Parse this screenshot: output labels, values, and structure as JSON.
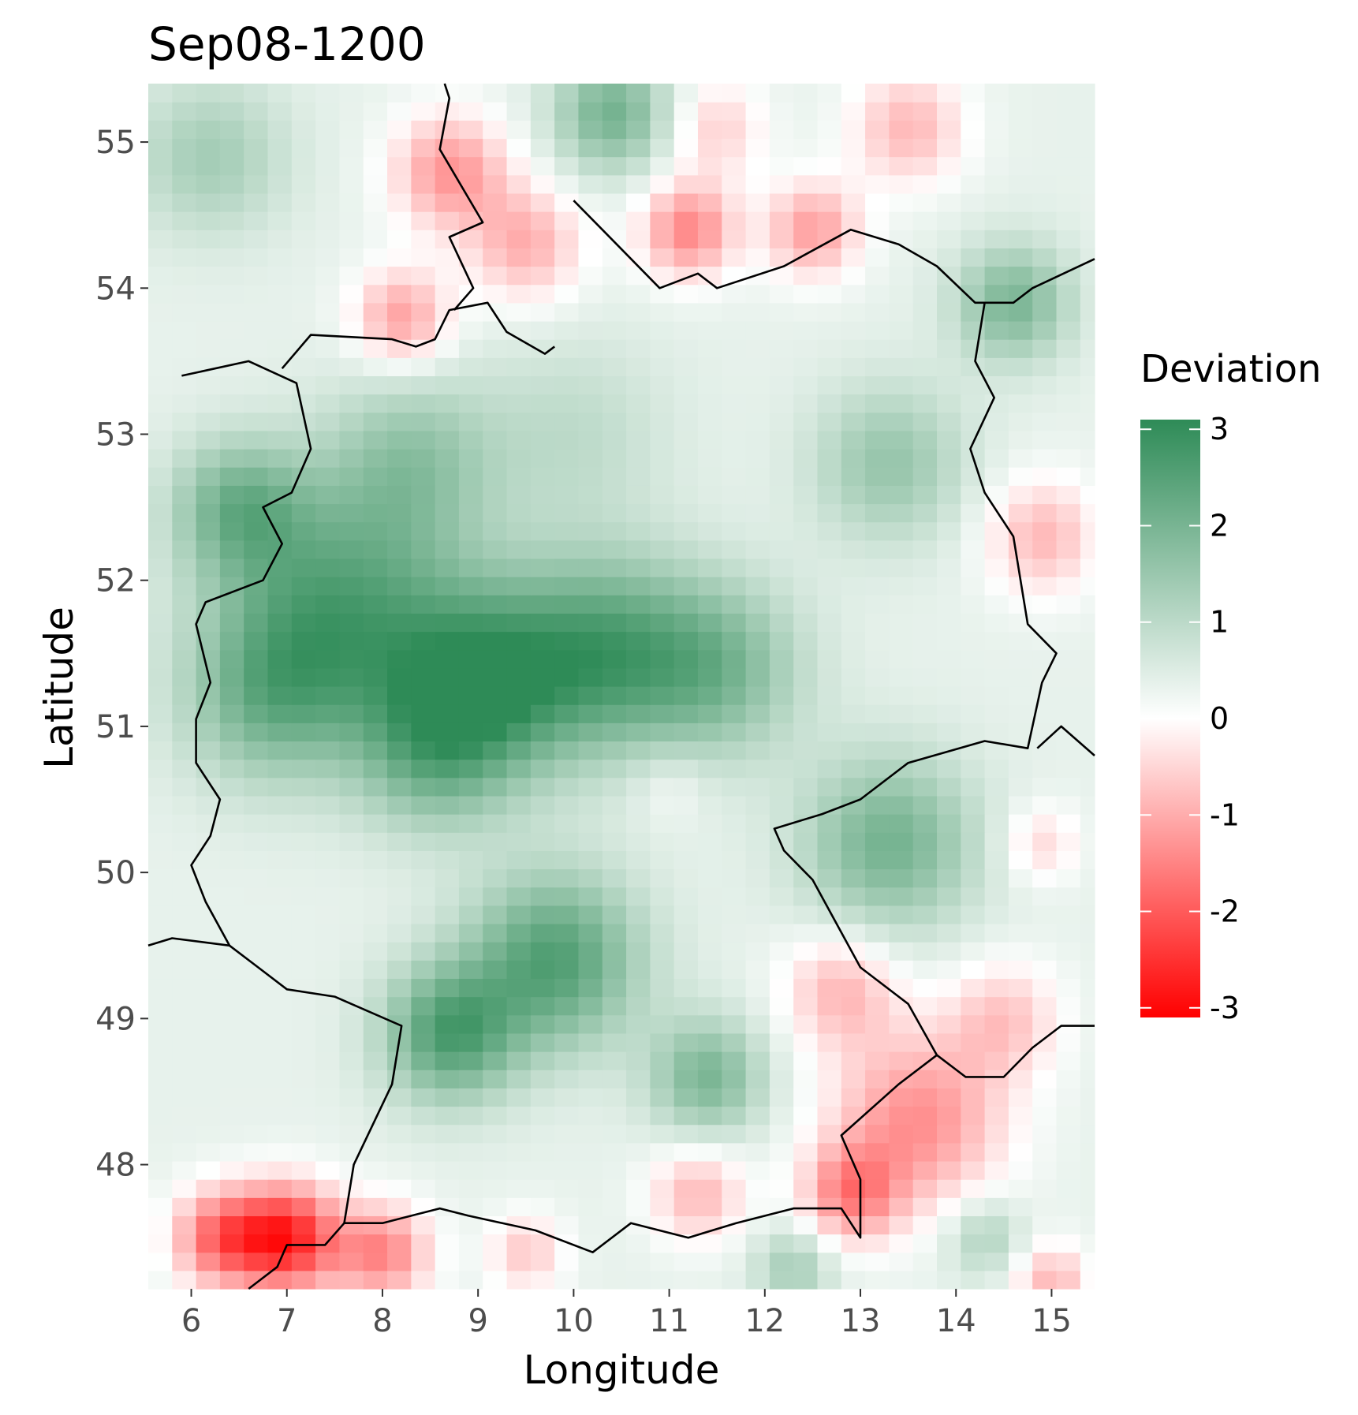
{
  "chart_data": {
    "type": "heatmap",
    "title": "Sep08-1200",
    "xlabel": "Longitude",
    "ylabel": "Latitude",
    "xlim": [
      5.55,
      15.45
    ],
    "ylim": [
      47.15,
      55.4
    ],
    "x_ticks": [
      {
        "value": 6,
        "label": "6"
      },
      {
        "value": 7,
        "label": "7"
      },
      {
        "value": 8,
        "label": "8"
      },
      {
        "value": 9,
        "label": "9"
      },
      {
        "value": 10,
        "label": "10"
      },
      {
        "value": 11,
        "label": "11"
      },
      {
        "value": 12,
        "label": "12"
      },
      {
        "value": 13,
        "label": "13"
      },
      {
        "value": 14,
        "label": "14"
      },
      {
        "value": 15,
        "label": "15"
      }
    ],
    "y_ticks": [
      {
        "value": 48,
        "label": "48"
      },
      {
        "value": 49,
        "label": "49"
      },
      {
        "value": 50,
        "label": "50"
      },
      {
        "value": 51,
        "label": "51"
      },
      {
        "value": 52,
        "label": "52"
      },
      {
        "value": 53,
        "label": "53"
      },
      {
        "value": 54,
        "label": "54"
      },
      {
        "value": 55,
        "label": "55"
      }
    ],
    "grid": false,
    "legend": {
      "title": "Deviation",
      "position": "right",
      "limits": [
        -3.1,
        3.1
      ],
      "ticks": [
        {
          "value": 3,
          "label": "3"
        },
        {
          "value": 2,
          "label": "2"
        },
        {
          "value": 1,
          "label": "1"
        },
        {
          "value": 0,
          "label": "0"
        },
        {
          "value": -1,
          "label": "-1"
        },
        {
          "value": -2,
          "label": "-2"
        },
        {
          "value": -3,
          "label": "-3"
        }
      ],
      "colors": {
        "high": "#2e8b57",
        "mid": "#ffffff",
        "low": "#ff0000"
      }
    },
    "grid_step": {
      "lon": 0.25,
      "lat": 0.125
    },
    "anomalies": [
      {
        "lon": 6.2,
        "lat": 54.9,
        "value": 1.0,
        "spread": 0.8
      },
      {
        "lon": 6.5,
        "lat": 52.5,
        "value": 1.6,
        "spread": 0.7
      },
      {
        "lon": 7.5,
        "lat": 51.8,
        "value": 2.0,
        "spread": 1.2
      },
      {
        "lon": 6.8,
        "lat": 51.2,
        "value": 1.4,
        "spread": 0.9
      },
      {
        "lon": 8.3,
        "lat": 52.8,
        "value": 1.2,
        "spread": 0.9
      },
      {
        "lon": 9.0,
        "lat": 51.3,
        "value": 2.4,
        "spread": 1.0
      },
      {
        "lon": 10.3,
        "lat": 51.5,
        "value": 2.0,
        "spread": 1.0
      },
      {
        "lon": 11.5,
        "lat": 51.4,
        "value": 1.5,
        "spread": 0.9
      },
      {
        "lon": 8.5,
        "lat": 50.8,
        "value": 1.2,
        "spread": 0.8
      },
      {
        "lon": 9.8,
        "lat": 49.4,
        "value": 2.2,
        "spread": 0.9
      },
      {
        "lon": 8.7,
        "lat": 48.9,
        "value": 2.2,
        "spread": 0.7
      },
      {
        "lon": 11.4,
        "lat": 48.6,
        "value": 1.6,
        "spread": 0.6
      },
      {
        "lon": 13.3,
        "lat": 50.2,
        "value": 1.7,
        "spread": 0.9
      },
      {
        "lon": 13.3,
        "lat": 52.8,
        "value": 1.2,
        "spread": 0.8
      },
      {
        "lon": 14.6,
        "lat": 53.9,
        "value": 1.6,
        "spread": 0.6
      },
      {
        "lon": 10.4,
        "lat": 55.2,
        "value": 1.7,
        "spread": 0.6
      },
      {
        "lon": 10.0,
        "lat": 53.0,
        "value": 0.6,
        "spread": 1.0
      },
      {
        "lon": 8.7,
        "lat": 54.8,
        "value": -1.6,
        "spread": 0.6
      },
      {
        "lon": 9.5,
        "lat": 54.3,
        "value": -1.3,
        "spread": 0.6
      },
      {
        "lon": 8.2,
        "lat": 53.8,
        "value": -1.5,
        "spread": 0.5
      },
      {
        "lon": 11.2,
        "lat": 54.4,
        "value": -1.8,
        "spread": 0.5
      },
      {
        "lon": 12.5,
        "lat": 54.4,
        "value": -1.5,
        "spread": 0.5
      },
      {
        "lon": 13.5,
        "lat": 55.1,
        "value": -1.2,
        "spread": 0.6
      },
      {
        "lon": 11.5,
        "lat": 55.1,
        "value": -0.9,
        "spread": 0.5
      },
      {
        "lon": 14.9,
        "lat": 52.3,
        "value": -1.2,
        "spread": 0.6
      },
      {
        "lon": 14.9,
        "lat": 50.2,
        "value": -0.8,
        "spread": 0.4
      },
      {
        "lon": 13.6,
        "lat": 48.3,
        "value": -1.7,
        "spread": 0.9
      },
      {
        "lon": 12.8,
        "lat": 49.2,
        "value": -1.2,
        "spread": 0.6
      },
      {
        "lon": 14.5,
        "lat": 49.0,
        "value": -1.0,
        "spread": 0.6
      },
      {
        "lon": 7.0,
        "lat": 47.5,
        "value": -3.0,
        "spread": 0.55
      },
      {
        "lon": 6.3,
        "lat": 47.5,
        "value": -2.0,
        "spread": 0.5
      },
      {
        "lon": 8.0,
        "lat": 47.4,
        "value": -1.8,
        "spread": 0.5
      },
      {
        "lon": 9.5,
        "lat": 47.4,
        "value": -1.0,
        "spread": 0.4
      },
      {
        "lon": 11.3,
        "lat": 47.8,
        "value": -1.2,
        "spread": 0.5
      },
      {
        "lon": 12.9,
        "lat": 47.8,
        "value": -1.7,
        "spread": 0.5
      },
      {
        "lon": 15.0,
        "lat": 47.2,
        "value": -1.2,
        "spread": 0.4
      },
      {
        "lon": 12.3,
        "lat": 47.3,
        "value": 1.0,
        "spread": 0.4
      },
      {
        "lon": 14.3,
        "lat": 47.5,
        "value": 0.9,
        "spread": 0.4
      },
      {
        "lon": 11.0,
        "lat": 50.6,
        "value": -0.4,
        "spread": 0.4
      }
    ],
    "borders": [
      [
        [
          5.9,
          53.4
        ],
        [
          6.6,
          53.5
        ],
        [
          7.1,
          53.35
        ],
        [
          7.25,
          52.9
        ],
        [
          7.05,
          52.6
        ],
        [
          6.75,
          52.5
        ],
        [
          6.95,
          52.25
        ],
        [
          6.75,
          52.0
        ],
        [
          6.15,
          51.85
        ],
        [
          6.05,
          51.7
        ],
        [
          6.2,
          51.3
        ],
        [
          6.05,
          51.05
        ],
        [
          6.05,
          50.75
        ],
        [
          6.3,
          50.5
        ],
        [
          6.2,
          50.25
        ],
        [
          6.0,
          50.05
        ],
        [
          6.15,
          49.8
        ],
        [
          6.4,
          49.5
        ],
        [
          6.7,
          49.35
        ],
        [
          7.0,
          49.2
        ],
        [
          7.5,
          49.15
        ],
        [
          8.2,
          48.95
        ],
        [
          8.1,
          48.55
        ],
        [
          7.7,
          48.0
        ],
        [
          7.6,
          47.6
        ],
        [
          8.0,
          47.6
        ],
        [
          8.6,
          47.7
        ],
        [
          8.9,
          47.65
        ],
        [
          9.6,
          47.55
        ],
        [
          10.2,
          47.4
        ],
        [
          10.6,
          47.6
        ],
        [
          11.2,
          47.5
        ],
        [
          11.7,
          47.6
        ],
        [
          12.3,
          47.7
        ],
        [
          12.8,
          47.7
        ],
        [
          13.0,
          47.5
        ],
        [
          13.0,
          47.9
        ],
        [
          12.8,
          48.2
        ],
        [
          13.4,
          48.55
        ],
        [
          13.8,
          48.75
        ],
        [
          13.5,
          49.1
        ],
        [
          13.0,
          49.35
        ],
        [
          12.5,
          49.95
        ],
        [
          12.2,
          50.15
        ],
        [
          12.1,
          50.3
        ],
        [
          12.6,
          50.4
        ],
        [
          13.0,
          50.5
        ],
        [
          13.5,
          50.75
        ],
        [
          14.3,
          50.9
        ],
        [
          14.75,
          50.85
        ],
        [
          14.9,
          51.3
        ],
        [
          15.05,
          51.5
        ],
        [
          14.75,
          51.7
        ],
        [
          14.6,
          52.3
        ],
        [
          14.3,
          52.6
        ],
        [
          14.15,
          52.9
        ],
        [
          14.4,
          53.25
        ],
        [
          14.2,
          53.5
        ],
        [
          14.3,
          53.9
        ]
      ],
      [
        [
          6.95,
          53.45
        ],
        [
          7.25,
          53.68
        ],
        [
          8.1,
          53.65
        ],
        [
          8.35,
          53.6
        ],
        [
          8.55,
          53.65
        ],
        [
          8.7,
          53.85
        ],
        [
          9.1,
          53.9
        ],
        [
          9.3,
          53.7
        ],
        [
          9.7,
          53.55
        ],
        [
          9.8,
          53.6
        ]
      ],
      [
        [
          8.75,
          53.85
        ],
        [
          8.95,
          54.0
        ],
        [
          8.7,
          54.35
        ],
        [
          9.05,
          54.45
        ],
        [
          8.6,
          54.95
        ],
        [
          8.7,
          55.3
        ],
        [
          8.65,
          55.4
        ]
      ],
      [
        [
          10.0,
          54.6
        ],
        [
          10.3,
          54.4
        ],
        [
          10.9,
          54.0
        ],
        [
          11.3,
          54.1
        ],
        [
          11.5,
          54.0
        ],
        [
          12.2,
          54.15
        ],
        [
          12.9,
          54.4
        ],
        [
          13.4,
          54.3
        ],
        [
          13.8,
          54.15
        ],
        [
          14.2,
          53.9
        ],
        [
          14.6,
          53.9
        ],
        [
          14.8,
          54.0
        ],
        [
          15.45,
          54.2
        ]
      ],
      [
        [
          14.85,
          50.85
        ],
        [
          15.1,
          51.0
        ],
        [
          15.45,
          50.8
        ]
      ],
      [
        [
          13.8,
          48.75
        ],
        [
          14.1,
          48.6
        ],
        [
          14.5,
          48.6
        ],
        [
          14.8,
          48.8
        ],
        [
          15.1,
          48.95
        ],
        [
          15.45,
          48.95
        ]
      ],
      [
        [
          5.55,
          49.5
        ],
        [
          5.8,
          49.55
        ],
        [
          6.4,
          49.5
        ]
      ],
      [
        [
          7.6,
          47.6
        ],
        [
          7.4,
          47.45
        ],
        [
          7.0,
          47.45
        ],
        [
          6.9,
          47.3
        ],
        [
          6.6,
          47.15
        ]
      ]
    ]
  }
}
